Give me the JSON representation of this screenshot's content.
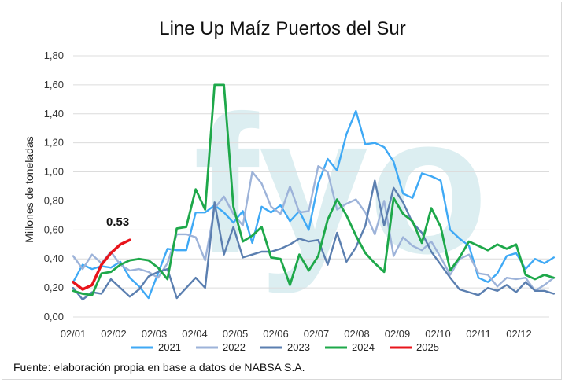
{
  "chart_data": {
    "type": "line",
    "title": "Line Up Maíz Puertos del Sur",
    "ylabel": "Millones de toneladas",
    "xlabel": "",
    "ylim": [
      0,
      1.8
    ],
    "yticks": [
      "0,00",
      "0,20",
      "0,40",
      "0,60",
      "0,80",
      "1,00",
      "1,20",
      "1,40",
      "1,60",
      "1,80"
    ],
    "xticks": [
      "02/01",
      "02/02",
      "02/03",
      "02/04",
      "02/05",
      "02/06",
      "02/07",
      "02/08",
      "02/09",
      "02/10",
      "02/11",
      "02/12"
    ],
    "grid": true,
    "legend_position": "bottom",
    "watermark": "fyo",
    "annotation": {
      "text": "0.53",
      "series": "2025"
    },
    "source": "Fuente: elaboración propia en base a datos de NABSA S.A.",
    "series": [
      {
        "name": "2021",
        "color": "#3fa9f5",
        "values": [
          0.24,
          0.36,
          0.33,
          0.35,
          0.34,
          0.38,
          0.27,
          0.21,
          0.13,
          0.3,
          0.47,
          0.46,
          0.46,
          0.72,
          0.72,
          0.77,
          0.72,
          0.65,
          0.73,
          0.51,
          0.76,
          0.72,
          0.77,
          0.66,
          0.73,
          0.6,
          0.92,
          1.09,
          1.01,
          1.26,
          1.42,
          1.19,
          1.2,
          1.17,
          1.07,
          0.85,
          0.82,
          0.99,
          0.97,
          0.94,
          0.6,
          0.54,
          0.49,
          0.27,
          0.24,
          0.3,
          0.42,
          0.44,
          0.33,
          0.4,
          0.37,
          0.41
        ]
      },
      {
        "name": "2022",
        "color": "#9db3d9",
        "values": [
          0.42,
          0.33,
          0.43,
          0.37,
          0.45,
          0.36,
          0.32,
          0.33,
          0.31,
          0.27,
          0.37,
          0.57,
          0.57,
          0.55,
          0.39,
          0.75,
          0.83,
          0.71,
          0.63,
          1.0,
          0.92,
          0.76,
          0.71,
          0.9,
          0.72,
          0.73,
          1.04,
          1.0,
          0.74,
          0.78,
          0.81,
          0.72,
          0.57,
          0.8,
          0.42,
          0.55,
          0.49,
          0.46,
          0.52,
          0.41,
          0.29,
          0.4,
          0.43,
          0.3,
          0.29,
          0.21,
          0.27,
          0.26,
          0.27,
          0.18,
          0.22,
          0.27
        ]
      },
      {
        "name": "2023",
        "color": "#5b7fb0",
        "values": [
          0.2,
          0.12,
          0.17,
          0.16,
          0.26,
          0.2,
          0.14,
          0.19,
          0.28,
          0.31,
          0.33,
          0.13,
          0.2,
          0.27,
          0.2,
          0.79,
          0.43,
          0.62,
          0.41,
          0.43,
          0.45,
          0.45,
          0.47,
          0.5,
          0.54,
          0.52,
          0.53,
          0.36,
          0.58,
          0.38,
          0.48,
          0.63,
          0.94,
          0.63,
          0.89,
          0.79,
          0.65,
          0.58,
          0.45,
          0.36,
          0.27,
          0.19,
          0.17,
          0.15,
          0.2,
          0.18,
          0.22,
          0.17,
          0.24,
          0.18,
          0.18,
          0.16
        ]
      },
      {
        "name": "2024",
        "color": "#1ea84a",
        "values": [
          0.18,
          0.16,
          0.15,
          0.3,
          0.31,
          0.36,
          0.39,
          0.4,
          0.39,
          0.34,
          0.26,
          0.61,
          0.62,
          0.88,
          0.74,
          1.6,
          1.6,
          0.76,
          0.52,
          0.56,
          0.62,
          0.41,
          0.4,
          0.22,
          0.43,
          0.32,
          0.42,
          0.67,
          0.81,
          0.7,
          0.56,
          0.44,
          0.37,
          0.31,
          0.82,
          0.71,
          0.66,
          0.51,
          0.75,
          0.62,
          0.32,
          0.41,
          0.52,
          0.49,
          0.46,
          0.5,
          0.47,
          0.5,
          0.29,
          0.26,
          0.29,
          0.27
        ]
      },
      {
        "name": "2025",
        "color": "#e8141b",
        "values": [
          0.24,
          0.19,
          0.22,
          0.36,
          0.44,
          0.5,
          0.53
        ]
      }
    ]
  }
}
